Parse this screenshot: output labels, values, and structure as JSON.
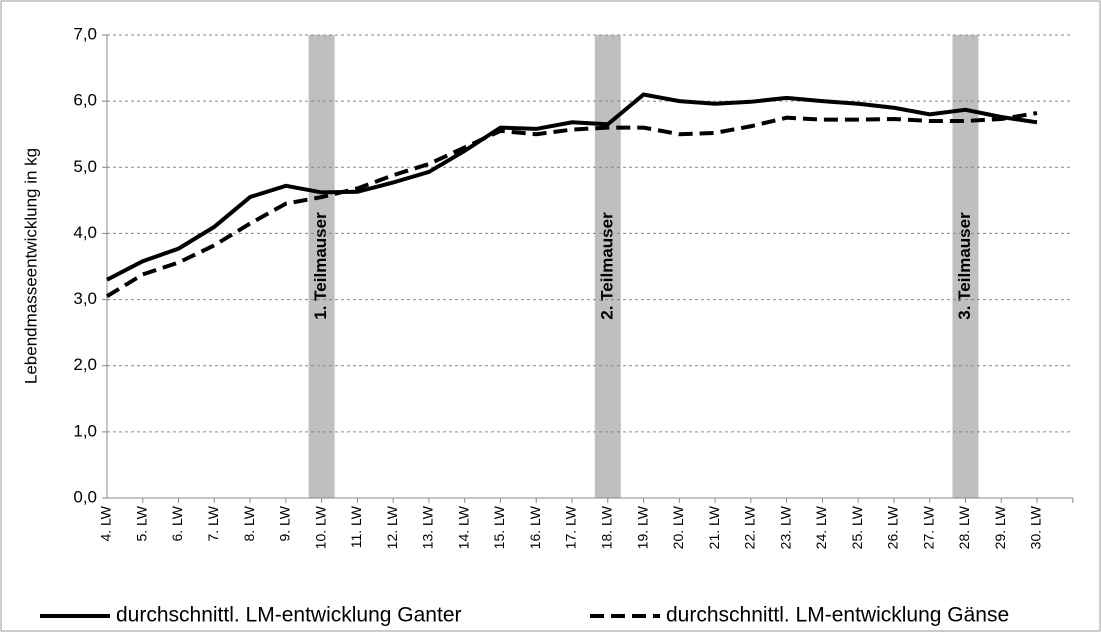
{
  "chart_data": {
    "type": "line",
    "y_label": "Lebendmasseentwicklung in kg",
    "categories": [
      "4. LW",
      "5. LW",
      "6. LW",
      "7. LW",
      "8. LW",
      "9. LW",
      "10. LW",
      "11. LW",
      "12. LW",
      "13. LW",
      "14. LW",
      "15. LW",
      "16. LW",
      "17. LW",
      "18. LW",
      "19. LW",
      "20. LW",
      "21. LW",
      "22. LW",
      "23. LW",
      "24. LW",
      "25. LW",
      "26. LW",
      "27. LW",
      "28. LW",
      "29. LW",
      "30. LW"
    ],
    "series": [
      {
        "name": "durchschnittl. LM-entwicklung Ganter",
        "color": "#000000",
        "dash": false,
        "values": [
          3.3,
          3.58,
          3.77,
          4.1,
          4.55,
          4.72,
          4.62,
          4.63,
          4.77,
          4.93,
          5.25,
          5.6,
          5.58,
          5.68,
          5.65,
          6.1,
          6.0,
          5.96,
          5.99,
          6.05,
          6.0,
          5.96,
          5.9,
          5.8,
          5.87,
          5.76,
          5.68
        ]
      },
      {
        "name": "durchschnittl. LM-entwicklung Gänse",
        "color": "#000000",
        "dash": true,
        "values": [
          3.05,
          3.38,
          3.56,
          3.82,
          4.15,
          4.45,
          4.55,
          4.68,
          4.88,
          5.05,
          5.3,
          5.55,
          5.5,
          5.57,
          5.6,
          5.6,
          5.5,
          5.52,
          5.62,
          5.75,
          5.72,
          5.72,
          5.73,
          5.7,
          5.7,
          5.73,
          5.82
        ]
      }
    ],
    "bands": [
      {
        "category": "10. LW",
        "label": "1. Teilmauser"
      },
      {
        "category": "18. LW",
        "label": "2. Teilmauser"
      },
      {
        "category": "28. LW",
        "label": "3. Teilmauser"
      }
    ],
    "band_color": "#bfbfbf",
    "ylim": [
      0,
      7
    ],
    "yticks": [
      {
        "value": 0,
        "label": "0,0"
      },
      {
        "value": 1,
        "label": "1,0"
      },
      {
        "value": 2,
        "label": "2,0"
      },
      {
        "value": 3,
        "label": "3,0"
      },
      {
        "value": 4,
        "label": "4,0"
      },
      {
        "value": 5,
        "label": "5,0"
      },
      {
        "value": 6,
        "label": "6,0"
      },
      {
        "value": 7,
        "label": "7,0"
      }
    ],
    "grid": true,
    "legend": "bottom"
  }
}
